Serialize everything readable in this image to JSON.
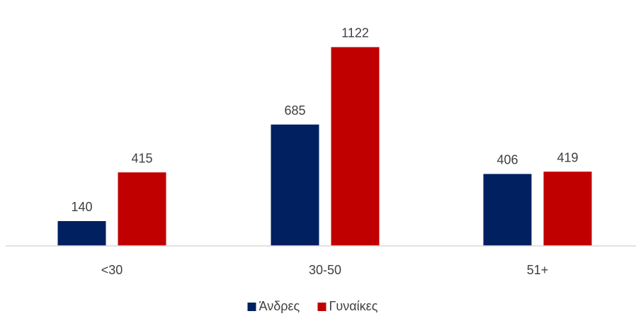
{
  "chart_data": {
    "type": "bar",
    "categories": [
      "<30",
      "30-50",
      "51+"
    ],
    "series": [
      {
        "name": "Άνδρες",
        "values": [
          140,
          685,
          406
        ],
        "color": "#002060"
      },
      {
        "name": "Γυναίκες",
        "values": [
          415,
          1122,
          419
        ],
        "color": "#C00000"
      }
    ],
    "ylim": [
      0,
      1200
    ],
    "grid": false,
    "legend": "bottom-center",
    "data_labels": true
  }
}
